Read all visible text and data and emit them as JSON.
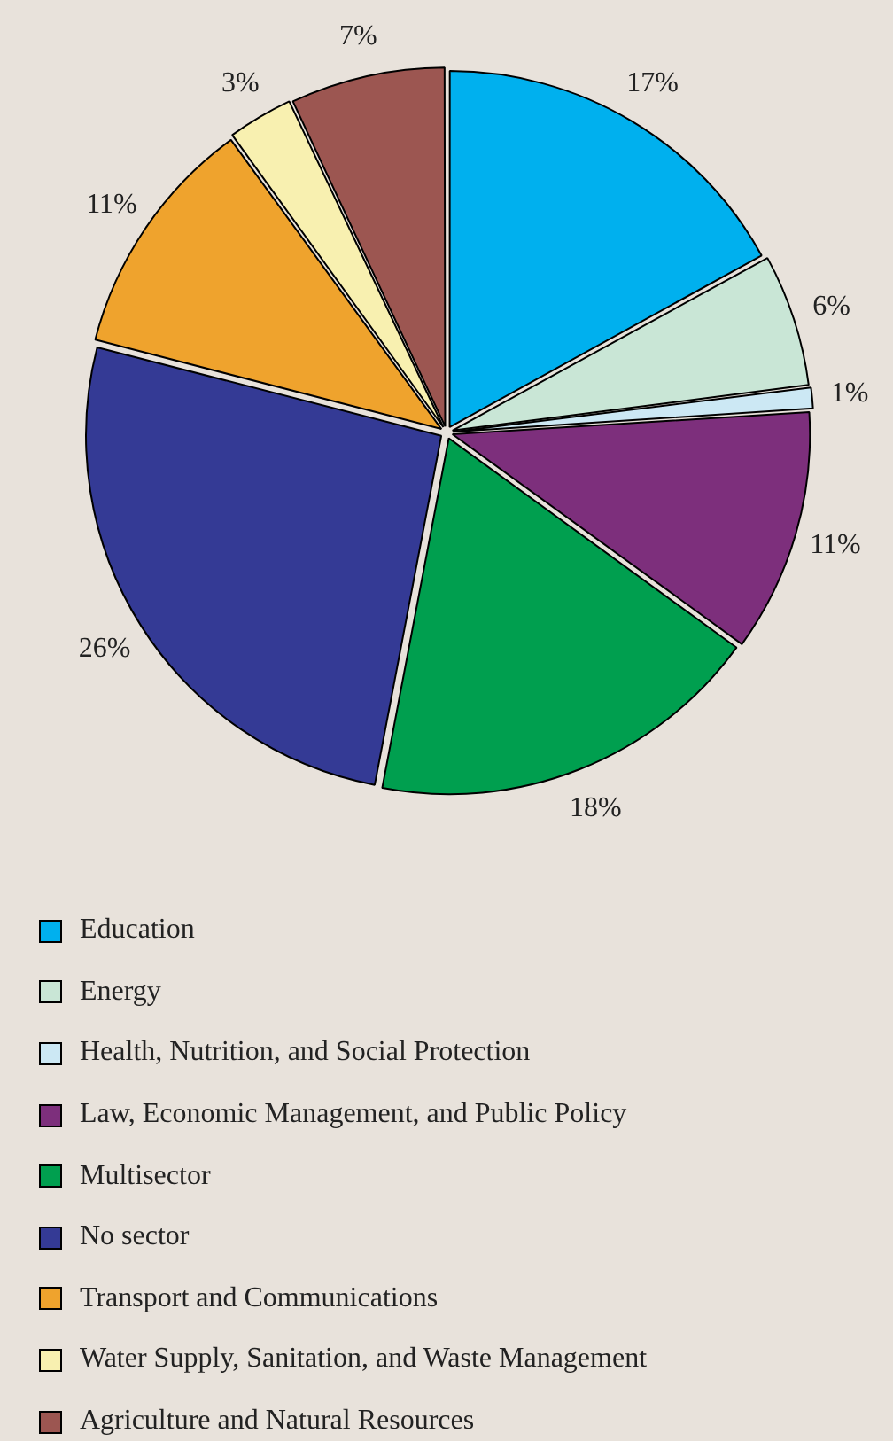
{
  "chart_data": {
    "type": "pie",
    "categories": [
      "Education",
      "Energy",
      "Health, Nutrition, and Social Protection",
      "Law, Economic Management, and Public Policy",
      "Multisector",
      "No sector",
      "Transport and Communications",
      "Water Supply, Sanitation, and Waste Management",
      "Agriculture and Natural Resources"
    ],
    "values": [
      17,
      6,
      1,
      11,
      18,
      26,
      11,
      3,
      7
    ],
    "value_labels": [
      "17%",
      "6%",
      "1%",
      "11%",
      "18%",
      "26%",
      "11%",
      "3%",
      "7%"
    ],
    "colors": [
      "#00b0ee",
      "#c9e6d6",
      "#cce8f4",
      "#7d2f7c",
      "#009f4f",
      "#343a95",
      "#efa32d",
      "#f8f0b0",
      "#9c5651"
    ],
    "legend": "bottom"
  }
}
